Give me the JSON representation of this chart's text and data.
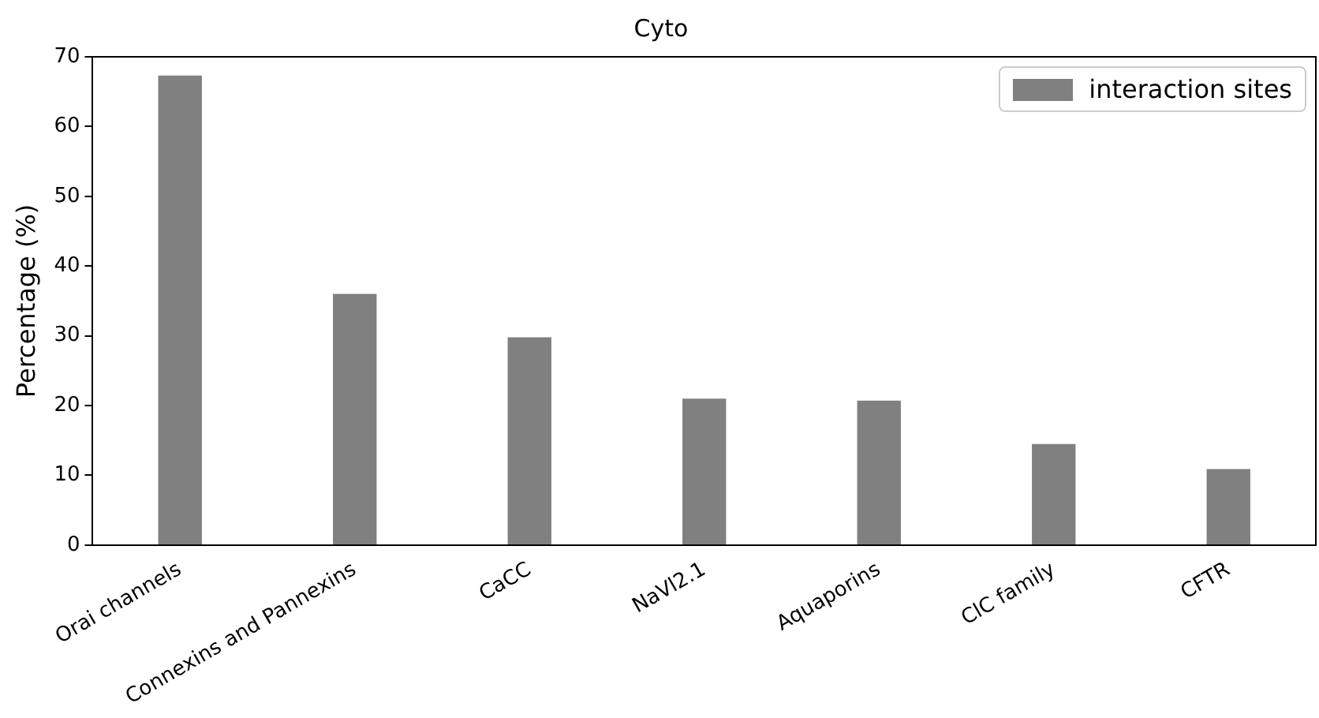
{
  "chart_data": {
    "type": "bar",
    "title": "Cyto",
    "ylabel": "Percentage (%)",
    "categories": [
      "Orai channels",
      "Connexins and Pannexins",
      "CaCC",
      "NaVl2.1",
      "Aquaporins",
      "ClC family",
      "CFTR"
    ],
    "series": [
      {
        "name": "interaction sites",
        "color": "#808080",
        "values": [
          67.3,
          36.0,
          29.8,
          21.0,
          20.7,
          14.5,
          10.9
        ]
      }
    ],
    "ylim": [
      0,
      70
    ],
    "yticks": [
      0,
      10,
      20,
      30,
      40,
      50,
      60,
      70
    ],
    "grid": false,
    "legend": "top right"
  }
}
